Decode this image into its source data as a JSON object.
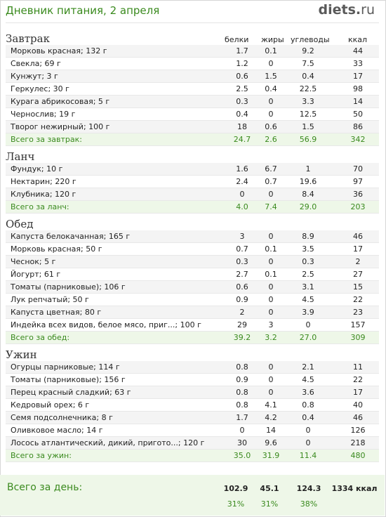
{
  "header": {
    "title": "Дневник питания, 2 апреля",
    "logo_main": "diets",
    "logo_dot": ".",
    "logo_tld": "ru"
  },
  "columns": {
    "protein": "белки",
    "fat": "жиры",
    "carbs": "углеводы",
    "kcal": "ккал"
  },
  "sections": [
    {
      "title": "Завтрак",
      "items": [
        {
          "name": "Морковь красная; 132 г",
          "protein": "1.7",
          "fat": "0.1",
          "carbs": "9.2",
          "kcal": "44"
        },
        {
          "name": "Свекла; 69 г",
          "protein": "1.2",
          "fat": "0",
          "carbs": "7.5",
          "kcal": "33"
        },
        {
          "name": "Кунжут; 3 г",
          "protein": "0.6",
          "fat": "1.5",
          "carbs": "0.4",
          "kcal": "17"
        },
        {
          "name": "Геркулес; 30 г",
          "protein": "2.5",
          "fat": "0.4",
          "carbs": "22.5",
          "kcal": "98"
        },
        {
          "name": "Курага абрикосовая; 5 г",
          "protein": "0.3",
          "fat": "0",
          "carbs": "3.3",
          "kcal": "14"
        },
        {
          "name": "Чернослив; 19 г",
          "protein": "0.4",
          "fat": "0",
          "carbs": "12.5",
          "kcal": "50"
        },
        {
          "name": "Творог нежирный; 100 г",
          "protein": "18",
          "fat": "0.6",
          "carbs": "1.5",
          "kcal": "86"
        }
      ],
      "total": {
        "label": "Всего за завтрак:",
        "protein": "24.7",
        "fat": "2.6",
        "carbs": "56.9",
        "kcal": "342"
      }
    },
    {
      "title": "Ланч",
      "items": [
        {
          "name": "Фундук; 10 г",
          "protein": "1.6",
          "fat": "6.7",
          "carbs": "1",
          "kcal": "70"
        },
        {
          "name": "Нектарин; 220 г",
          "protein": "2.4",
          "fat": "0.7",
          "carbs": "19.6",
          "kcal": "97"
        },
        {
          "name": "Клубника; 120 г",
          "protein": "0",
          "fat": "0",
          "carbs": "8.4",
          "kcal": "36"
        }
      ],
      "total": {
        "label": "Всего за ланч:",
        "protein": "4.0",
        "fat": "7.4",
        "carbs": "29.0",
        "kcal": "203"
      }
    },
    {
      "title": "Обед",
      "items": [
        {
          "name": "Капуста белокачанная; 165 г",
          "protein": "3",
          "fat": "0",
          "carbs": "8.9",
          "kcal": "46"
        },
        {
          "name": "Морковь красная; 50 г",
          "protein": "0.7",
          "fat": "0.1",
          "carbs": "3.5",
          "kcal": "17"
        },
        {
          "name": "Чеснок; 5 г",
          "protein": "0.3",
          "fat": "0",
          "carbs": "0.3",
          "kcal": "2"
        },
        {
          "name": "Йогурт; 61 г",
          "protein": "2.7",
          "fat": "0.1",
          "carbs": "2.5",
          "kcal": "27"
        },
        {
          "name": "Томаты (парниковые); 106 г",
          "protein": "0.6",
          "fat": "0",
          "carbs": "3.1",
          "kcal": "15"
        },
        {
          "name": "Лук репчатый; 50 г",
          "protein": "0.9",
          "fat": "0",
          "carbs": "4.5",
          "kcal": "22"
        },
        {
          "name": "Капуста цветная; 80 г",
          "protein": "2",
          "fat": "0",
          "carbs": "3.9",
          "kcal": "23"
        },
        {
          "name": "Индейка всех видов, белое мясо, приг...; 100 г",
          "protein": "29",
          "fat": "3",
          "carbs": "0",
          "kcal": "157"
        }
      ],
      "total": {
        "label": "Всего за обед:",
        "protein": "39.2",
        "fat": "3.2",
        "carbs": "27.0",
        "kcal": "309"
      }
    },
    {
      "title": "Ужин",
      "items": [
        {
          "name": "Огурцы парниковые; 114 г",
          "protein": "0.8",
          "fat": "0",
          "carbs": "2.1",
          "kcal": "11"
        },
        {
          "name": "Томаты (парниковые); 156 г",
          "protein": "0.9",
          "fat": "0",
          "carbs": "4.5",
          "kcal": "22"
        },
        {
          "name": "Перец красный сладкий; 63 г",
          "protein": "0.8",
          "fat": "0",
          "carbs": "3.6",
          "kcal": "17"
        },
        {
          "name": "Кедровый орех; 6 г",
          "protein": "0.8",
          "fat": "4.1",
          "carbs": "0.8",
          "kcal": "40"
        },
        {
          "name": "Семя подсолнечника; 8 г",
          "protein": "1.7",
          "fat": "4.2",
          "carbs": "0.4",
          "kcal": "46"
        },
        {
          "name": "Оливковое масло; 14 г",
          "protein": "0",
          "fat": "14",
          "carbs": "0",
          "kcal": "126"
        },
        {
          "name": "Лосось атлантический, дикий, пригото...; 120 г",
          "protein": "30",
          "fat": "9.6",
          "carbs": "0",
          "kcal": "218"
        }
      ],
      "total": {
        "label": "Всего за ужин:",
        "protein": "35.0",
        "fat": "31.9",
        "carbs": "11.4",
        "kcal": "480"
      }
    }
  ],
  "day_total": {
    "label": "Всего за день:",
    "protein": "102.9",
    "fat": "45.1",
    "carbs": "124.3",
    "kcal": "1334 ккал",
    "protein_pct": "31%",
    "fat_pct": "31%",
    "carbs_pct": "38%"
  },
  "colors": {
    "accent_green": "#3a8a1e",
    "total_row_bg": "#eef7e8",
    "odd_row_bg": "#f4f4f4"
  }
}
